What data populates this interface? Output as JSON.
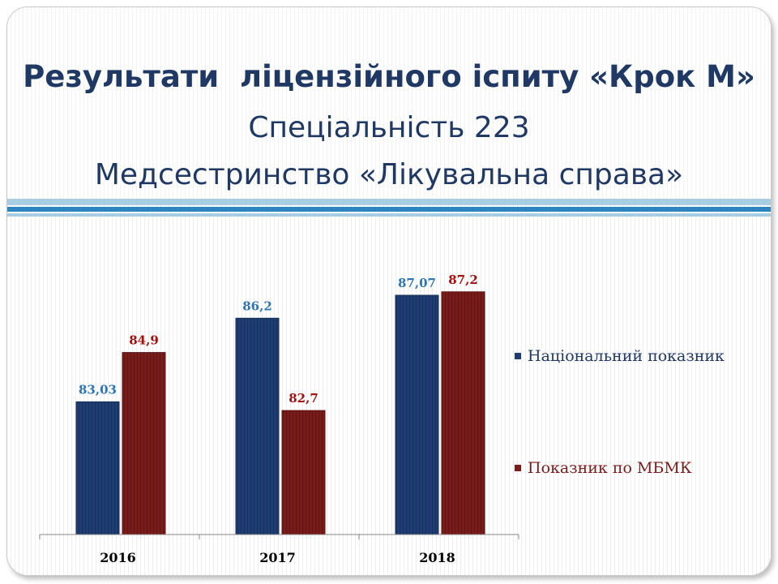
{
  "slide": {
    "title": "Результати  ліцензійного іспиту «Крок М»",
    "subtitle_line1": "Спеціальність 223",
    "subtitle_line2": "Медсестринство «Лікувальна справа»"
  },
  "colors": {
    "title": "#1f3864",
    "national": "#1f3d73",
    "college": "#7b1c1c",
    "national_label": "#2e75b6",
    "college_label": "#a50f0f"
  },
  "legend": {
    "national": "Національний показник",
    "college": "Показник по МБМК",
    "placement": "right"
  },
  "chart_data": {
    "type": "bar",
    "categories": [
      "2016",
      "2017",
      "2018"
    ],
    "series": [
      {
        "name": "Національний показник",
        "values": [
          83.03,
          86.2,
          87.07
        ],
        "labels": [
          "83,03",
          "86,2",
          "87,07"
        ]
      },
      {
        "name": "Показник по МБМК",
        "values": [
          84.9,
          82.7,
          87.2
        ],
        "labels": [
          "84,9",
          "82,7",
          "87,2"
        ]
      }
    ],
    "ylim": [
      78,
      88.3
    ],
    "grid": false,
    "y_axis_visible": false
  }
}
